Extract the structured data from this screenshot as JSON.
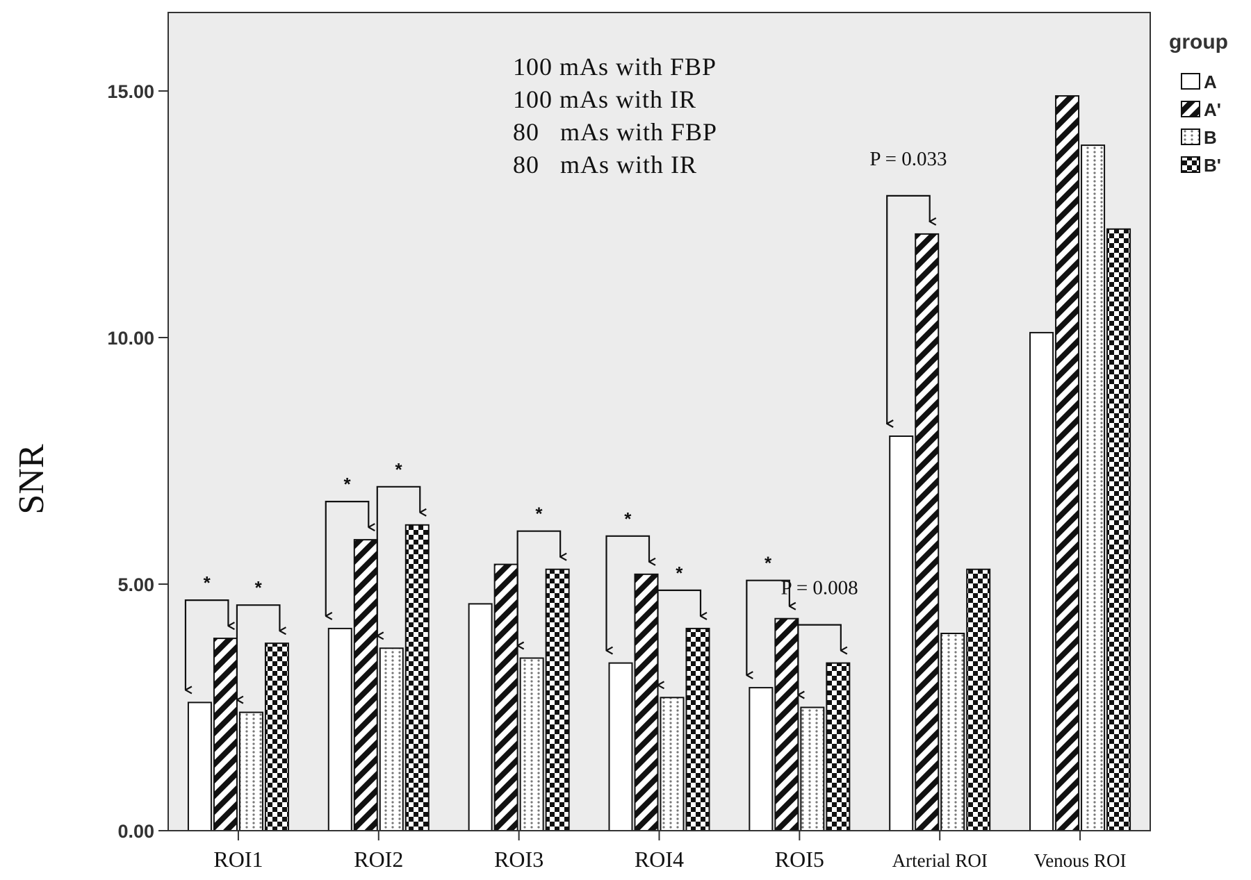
{
  "chart_data": {
    "type": "bar",
    "ylabel": "SNR",
    "ylim": [
      0,
      16.5
    ],
    "yticks": [
      "0.00",
      "5.00",
      "10.00",
      "15.00"
    ],
    "categories": [
      "ROI1",
      "ROI2",
      "ROI3",
      "ROI4",
      "ROI5",
      "Arterial ROI",
      "Venous ROI"
    ],
    "legend_title": "group",
    "legend_position": "right",
    "series": [
      {
        "name": "A",
        "pattern": "empty",
        "values": [
          2.6,
          4.1,
          4.6,
          3.4,
          2.9,
          8.0,
          10.1
        ]
      },
      {
        "name": "A'",
        "pattern": "hatch",
        "values": [
          3.9,
          5.9,
          5.4,
          5.2,
          4.3,
          12.1,
          14.9
        ]
      },
      {
        "name": "B",
        "pattern": "dots",
        "values": [
          2.4,
          3.7,
          3.5,
          2.7,
          2.5,
          4.0,
          13.9
        ]
      },
      {
        "name": "B'",
        "pattern": "checker",
        "values": [
          3.8,
          6.2,
          5.3,
          4.1,
          3.4,
          5.3,
          12.2
        ]
      }
    ],
    "annotation_lines": [
      "100 mAs with FBP",
      "100 mAs with IR",
      "80   mAs with FBP",
      "80   mAs with IR"
    ],
    "comparisons": [
      {
        "category": 0,
        "from": 0,
        "to": 1,
        "label": "*"
      },
      {
        "category": 0,
        "from": 2,
        "to": 3,
        "label": "*"
      },
      {
        "category": 1,
        "from": 0,
        "to": 1,
        "label": "*"
      },
      {
        "category": 1,
        "from": 2,
        "to": 3,
        "label": "*"
      },
      {
        "category": 2,
        "from": 2,
        "to": 3,
        "label": "*"
      },
      {
        "category": 3,
        "from": 0,
        "to": 1,
        "label": "*"
      },
      {
        "category": 3,
        "from": 2,
        "to": 3,
        "label": "*"
      },
      {
        "category": 4,
        "from": 0,
        "to": 1,
        "label": "*"
      },
      {
        "category": 4,
        "from": 2,
        "to": 3,
        "label": "P = 0.008"
      },
      {
        "category": 5,
        "from": 0,
        "to": 1,
        "label": "P = 0.033"
      }
    ]
  }
}
